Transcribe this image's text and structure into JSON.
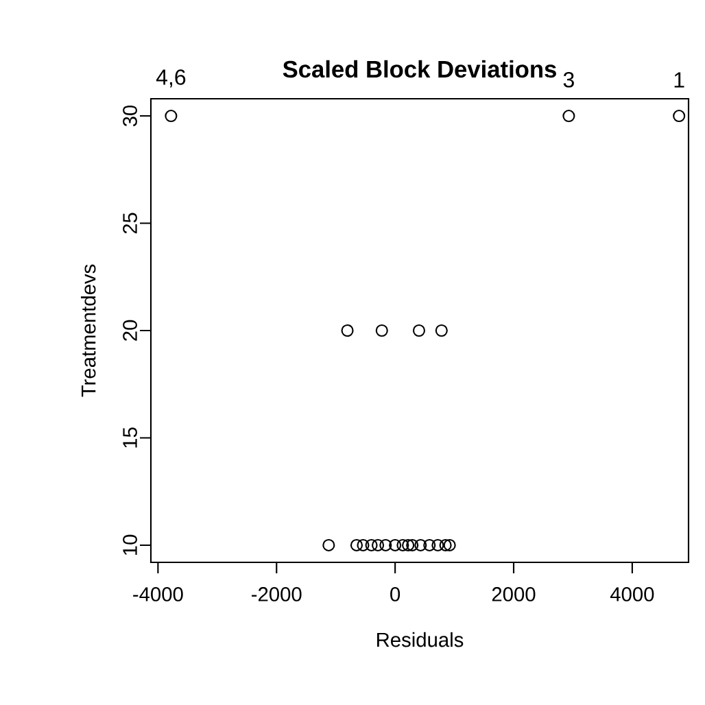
{
  "chart_data": {
    "type": "scatter",
    "title": "Scaled Block Deviations",
    "xlabel": "Residuals",
    "ylabel": "Treatmentdevs",
    "x": [
      -3780,
      2930,
      4790,
      -805,
      -224,
      403,
      783,
      -1120,
      -650,
      -540,
      -400,
      -290,
      -160,
      0,
      130,
      220,
      290,
      430,
      580,
      720,
      850,
      920
    ],
    "values": [
      30,
      30,
      30,
      20,
      20,
      20,
      20,
      10,
      10,
      10,
      10,
      10,
      10,
      10,
      10,
      10,
      10,
      10,
      10,
      10,
      10,
      10
    ],
    "color": "#000000",
    "marker": "circle",
    "xlim": [
      -4120,
      4950
    ],
    "ylim": [
      9.2,
      30.8
    ],
    "xticks": [
      -4000,
      -2000,
      0,
      2000,
      4000
    ],
    "yticks": [
      10,
      15,
      20,
      25,
      30
    ],
    "annotations": [
      {
        "text": "4,6",
        "x": -3780,
        "y": 30
      },
      {
        "text": "3",
        "x": 2930,
        "y": 30
      },
      {
        "text": "1",
        "x": 4790,
        "y": 30
      }
    ]
  }
}
